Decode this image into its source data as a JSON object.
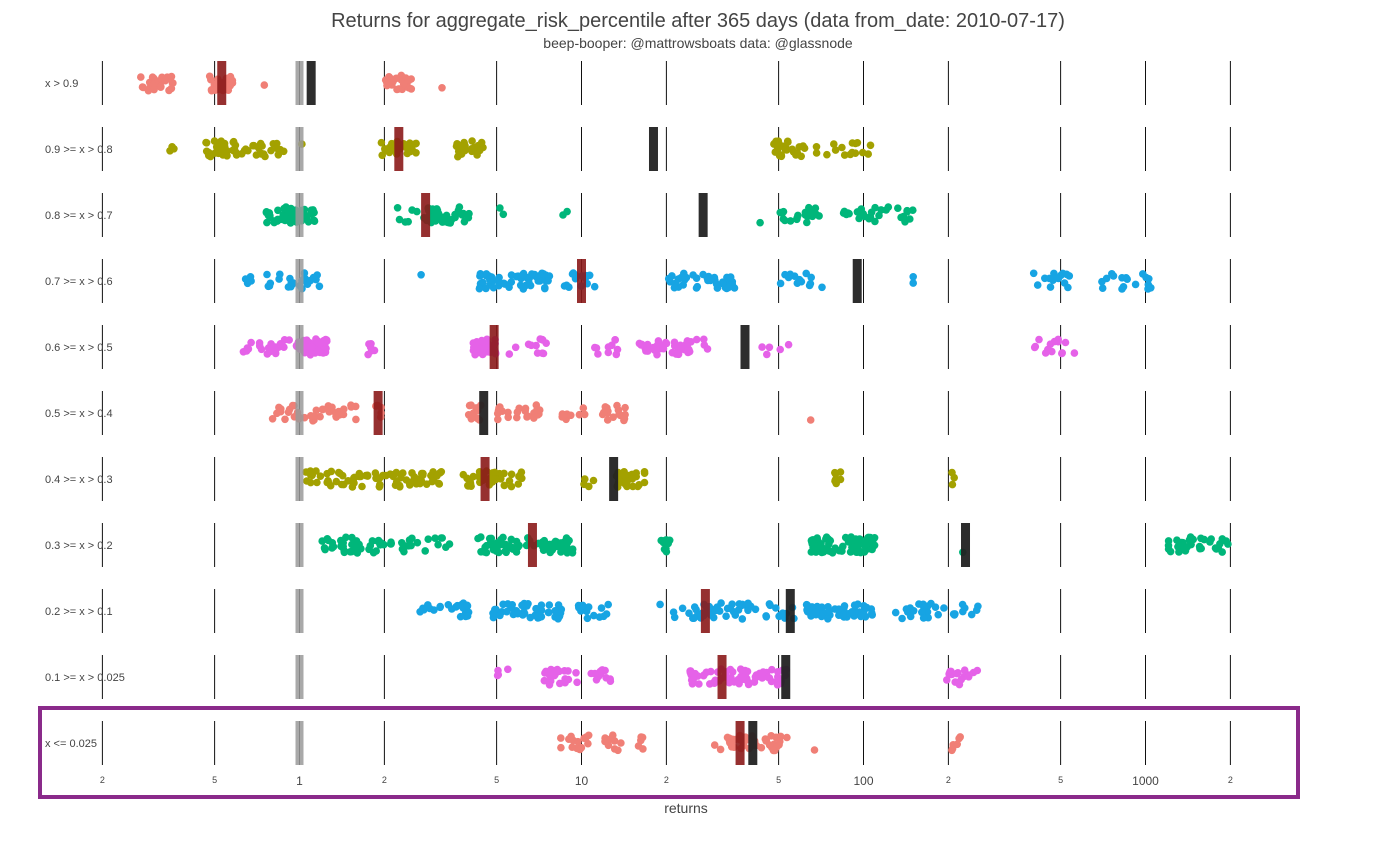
{
  "chart_data": {
    "type": "scatter",
    "title": "Returns for aggregate_risk_percentile after 365 days (data from_date: 2010-07-17)",
    "subtitle": "beep-booper: @mattrowsboats data: @glassnode",
    "xlabel": "returns",
    "xscale": "log",
    "xlim": [
      0.15,
      3000
    ],
    "ticks": [
      {
        "v": 0.2,
        "label": "2",
        "major": false
      },
      {
        "v": 0.5,
        "label": "5",
        "major": false
      },
      {
        "v": 1,
        "label": "1",
        "major": true
      },
      {
        "v": 2,
        "label": "2",
        "major": false
      },
      {
        "v": 5,
        "label": "5",
        "major": false
      },
      {
        "v": 10,
        "label": "10",
        "major": true
      },
      {
        "v": 20,
        "label": "2",
        "major": false
      },
      {
        "v": 50,
        "label": "5",
        "major": false
      },
      {
        "v": 100,
        "label": "100",
        "major": true
      },
      {
        "v": 200,
        "label": "2",
        "major": false
      },
      {
        "v": 500,
        "label": "5",
        "major": false
      },
      {
        "v": 1000,
        "label": "1000",
        "major": true
      },
      {
        "v": 2000,
        "label": "2",
        "major": false
      }
    ],
    "colors": {
      "salmon": "#f07f76",
      "olive": "#a3a100",
      "green": "#00b67a",
      "blue": "#17a4e3",
      "pink": "#e562e8",
      "median_marker": "#8b1a1a",
      "mean_marker": "#222222",
      "baseline_marker": "#9a9a9a",
      "highlight_box": "#8a2a8a"
    },
    "reference_value": 1,
    "highlighted_bucket": "x <= 0.025",
    "rows": [
      {
        "label": "x > 0.9",
        "color": "salmon",
        "median": 0.53,
        "mean": 1.1,
        "clusters": [
          [
            0.27,
            0.36,
            28
          ],
          [
            0.48,
            0.58,
            22
          ],
          [
            0.75,
            0.75,
            1
          ],
          [
            1.95,
            2.5,
            28
          ],
          [
            3.2,
            3.2,
            1
          ]
        ]
      },
      {
        "label": "0.9 >= x > 0.8",
        "color": "olive",
        "median": 2.25,
        "mean": 18.0,
        "clusters": [
          [
            0.34,
            0.36,
            3
          ],
          [
            0.46,
            0.88,
            55
          ],
          [
            1.02,
            1.02,
            1
          ],
          [
            1.95,
            2.6,
            28
          ],
          [
            3.6,
            4.5,
            24
          ],
          [
            48,
            62,
            30
          ],
          [
            68,
            115,
            16
          ]
        ]
      },
      {
        "label": "0.8 >= x > 0.7",
        "color": "green",
        "median": 2.8,
        "mean": 27.0,
        "clusters": [
          [
            0.75,
            1.15,
            55
          ],
          [
            2.2,
            4.0,
            48
          ],
          [
            5.1,
            5.3,
            2
          ],
          [
            8.4,
            8.9,
            2
          ],
          [
            43,
            43,
            1
          ],
          [
            50,
            70,
            22
          ],
          [
            80,
            150,
            28
          ]
        ]
      },
      {
        "label": "0.7 >= x > 0.6",
        "color": "blue",
        "median": 10.0,
        "mean": 95.0,
        "clusters": [
          [
            0.55,
            0.95,
            16
          ],
          [
            1.0,
            1.18,
            12
          ],
          [
            2.7,
            2.7,
            1
          ],
          [
            4.3,
            7.7,
            58
          ],
          [
            8.6,
            11.5,
            14
          ],
          [
            20,
            35,
            38
          ],
          [
            50,
            75,
            14
          ],
          [
            150,
            150,
            2
          ],
          [
            400,
            550,
            14
          ],
          [
            700,
            1050,
            18
          ]
        ]
      },
      {
        "label": "0.6 >= x > 0.5",
        "color": "pink",
        "median": 4.9,
        "mean": 38.0,
        "clusters": [
          [
            0.62,
            0.95,
            20
          ],
          [
            0.97,
            1.25,
            40
          ],
          [
            1.75,
            1.85,
            6
          ],
          [
            4.1,
            5.0,
            34
          ],
          [
            5.5,
            7.5,
            12
          ],
          [
            11,
            14,
            10
          ],
          [
            16,
            28,
            42
          ],
          [
            42,
            60,
            5
          ],
          [
            400,
            560,
            14
          ]
        ]
      },
      {
        "label": "0.5 >= x > 0.4",
        "color": "salmon",
        "median": 1.9,
        "mean": 4.5,
        "clusters": [
          [
            0.8,
            1.6,
            40
          ],
          [
            1.85,
            1.95,
            6
          ],
          [
            3.9,
            4.4,
            12
          ],
          [
            5.0,
            7.2,
            22
          ],
          [
            8.4,
            10.5,
            10
          ],
          [
            11.8,
            14.5,
            16
          ],
          [
            65,
            65,
            1
          ]
        ]
      },
      {
        "label": "0.4 >= x > 0.3",
        "color": "olive",
        "median": 4.55,
        "mean": 13.0,
        "clusters": [
          [
            1.05,
            3.2,
            80
          ],
          [
            3.8,
            6.2,
            36
          ],
          [
            10.2,
            11.8,
            4
          ],
          [
            13.3,
            16.8,
            30
          ],
          [
            79,
            85,
            8
          ],
          [
            205,
            210,
            3
          ]
        ]
      },
      {
        "label": "0.3 >= x > 0.2",
        "color": "green",
        "median": 6.7,
        "mean": 230.0,
        "clusters": [
          [
            1.2,
            2.0,
            40
          ],
          [
            2.1,
            3.5,
            20
          ],
          [
            4.0,
            9.5,
            78
          ],
          [
            19,
            21,
            10
          ],
          [
            65,
            110,
            80
          ],
          [
            225,
            225,
            1
          ],
          [
            1200,
            2000,
            36
          ]
        ]
      },
      {
        "label": "0.2 >= x > 0.1",
        "color": "blue",
        "median": 27.5,
        "mean": 55.0,
        "clusters": [
          [
            2.6,
            4.0,
            22
          ],
          [
            4.8,
            8.5,
            52
          ],
          [
            9.6,
            12.5,
            16
          ],
          [
            19,
            19,
            1
          ],
          [
            21,
            42,
            42
          ],
          [
            44,
            58,
            12
          ],
          [
            62,
            108,
            50
          ],
          [
            130,
            270,
            30
          ]
        ]
      },
      {
        "label": "0.1 >= x > 0.025",
        "color": "pink",
        "median": 31.5,
        "mean": 53.0,
        "clusters": [
          [
            5.0,
            5.8,
            4
          ],
          [
            7.2,
            9.8,
            24
          ],
          [
            10.8,
            13.0,
            12
          ],
          [
            24,
            40,
            50
          ],
          [
            41,
            54,
            24
          ],
          [
            195,
            255,
            18
          ]
        ]
      },
      {
        "label": "x <= 0.025",
        "color": "salmon",
        "median": 36.5,
        "mean": 40.5,
        "clusters": [
          [
            8.4,
            11.0,
            14
          ],
          [
            12.0,
            13.8,
            10
          ],
          [
            15.8,
            16.8,
            5
          ],
          [
            29,
            54,
            42
          ],
          [
            67,
            67,
            1
          ],
          [
            205,
            230,
            6
          ]
        ]
      }
    ]
  }
}
